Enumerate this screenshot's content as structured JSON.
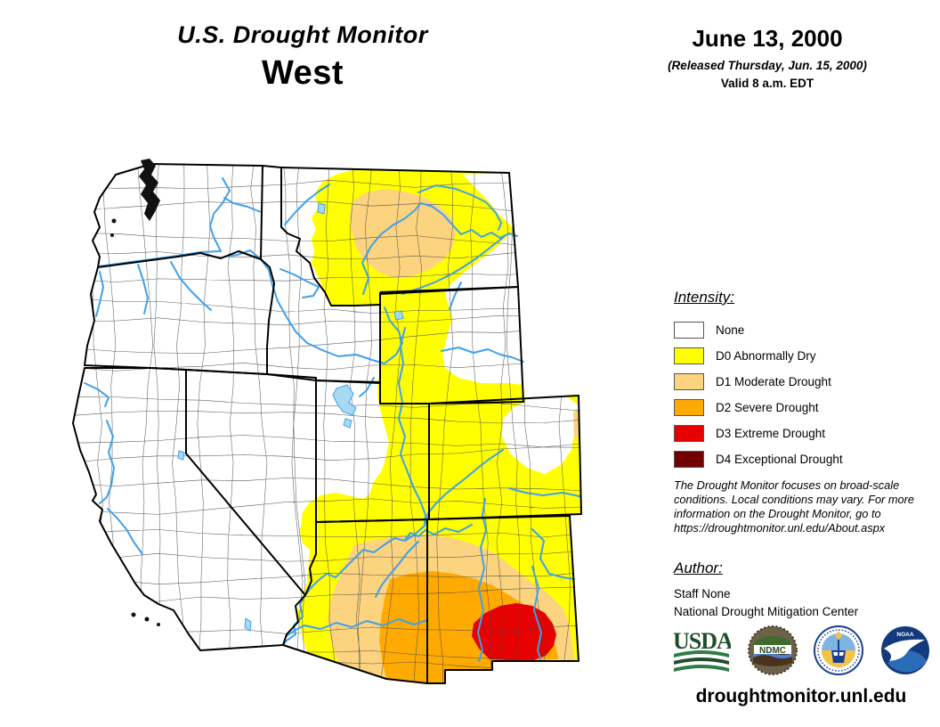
{
  "title": {
    "line1": "U.S. Drought Monitor",
    "line2": "West"
  },
  "date_block": {
    "date": "June 13, 2000",
    "released": "(Released Thursday, Jun. 15, 2000)",
    "valid": "Valid 8 a.m. EDT"
  },
  "legend": {
    "title": "Intensity:",
    "items": [
      {
        "code": "none",
        "label": "None",
        "color": "#FFFFFF"
      },
      {
        "code": "D0",
        "label": "D0 Abnormally Dry",
        "color": "#FFFF00"
      },
      {
        "code": "D1",
        "label": "D1 Moderate Drought",
        "color": "#FCD37F"
      },
      {
        "code": "D2",
        "label": "D2 Severe Drought",
        "color": "#FFAA00"
      },
      {
        "code": "D3",
        "label": "D3 Extreme Drought",
        "color": "#E60000"
      },
      {
        "code": "D4",
        "label": "D4 Exceptional Drought",
        "color": "#730000"
      }
    ]
  },
  "disclaimer": "The Drought Monitor focuses on broad-scale conditions. Local conditions may vary. For more information on the Drought Monitor, go to https://droughtmonitor.unl.edu/About.aspx",
  "author_block": {
    "title": "Author:",
    "line1": "Staff None",
    "line2": "National Drought Mitigation Center"
  },
  "footer": {
    "url": "droughtmonitor.unl.edu"
  },
  "logos": [
    {
      "name": "USDA"
    },
    {
      "name": "NDMC"
    },
    {
      "name": "U.S. Department of Commerce"
    },
    {
      "name": "NOAA"
    }
  ],
  "map": {
    "region": "West",
    "states": [
      "Washington",
      "Oregon",
      "California",
      "Nevada",
      "Idaho",
      "Montana",
      "Wyoming",
      "Utah",
      "Colorado",
      "Arizona",
      "New Mexico"
    ],
    "colors": {
      "none": "#FFFFFF",
      "d0": "#FFFF00",
      "d1": "#FCD37F",
      "d2": "#FFAA00",
      "d3": "#E60000",
      "d4": "#730000",
      "river": "#3FA0EC",
      "lake": "#A8D9F2",
      "state_border": "#000000",
      "county_line": "#4a4a4a",
      "water_black": "#111111"
    },
    "drought_areas": [
      {
        "level": "D0",
        "areas": "central and eastern Montana, western and southern Wyoming, eastern Utah, most of Colorado, eastern Arizona, most of New Mexico, far southeast Nevada corner"
      },
      {
        "level": "D1",
        "areas": "central Montana; northeastern Arizona across to southern New Mexico fringe along the east border"
      },
      {
        "level": "D2",
        "areas": "southeastern Arizona and southwestern/southern New Mexico"
      },
      {
        "level": "D3",
        "areas": "south-central New Mexico"
      },
      {
        "level": "D4",
        "areas": "none on map"
      }
    ]
  }
}
